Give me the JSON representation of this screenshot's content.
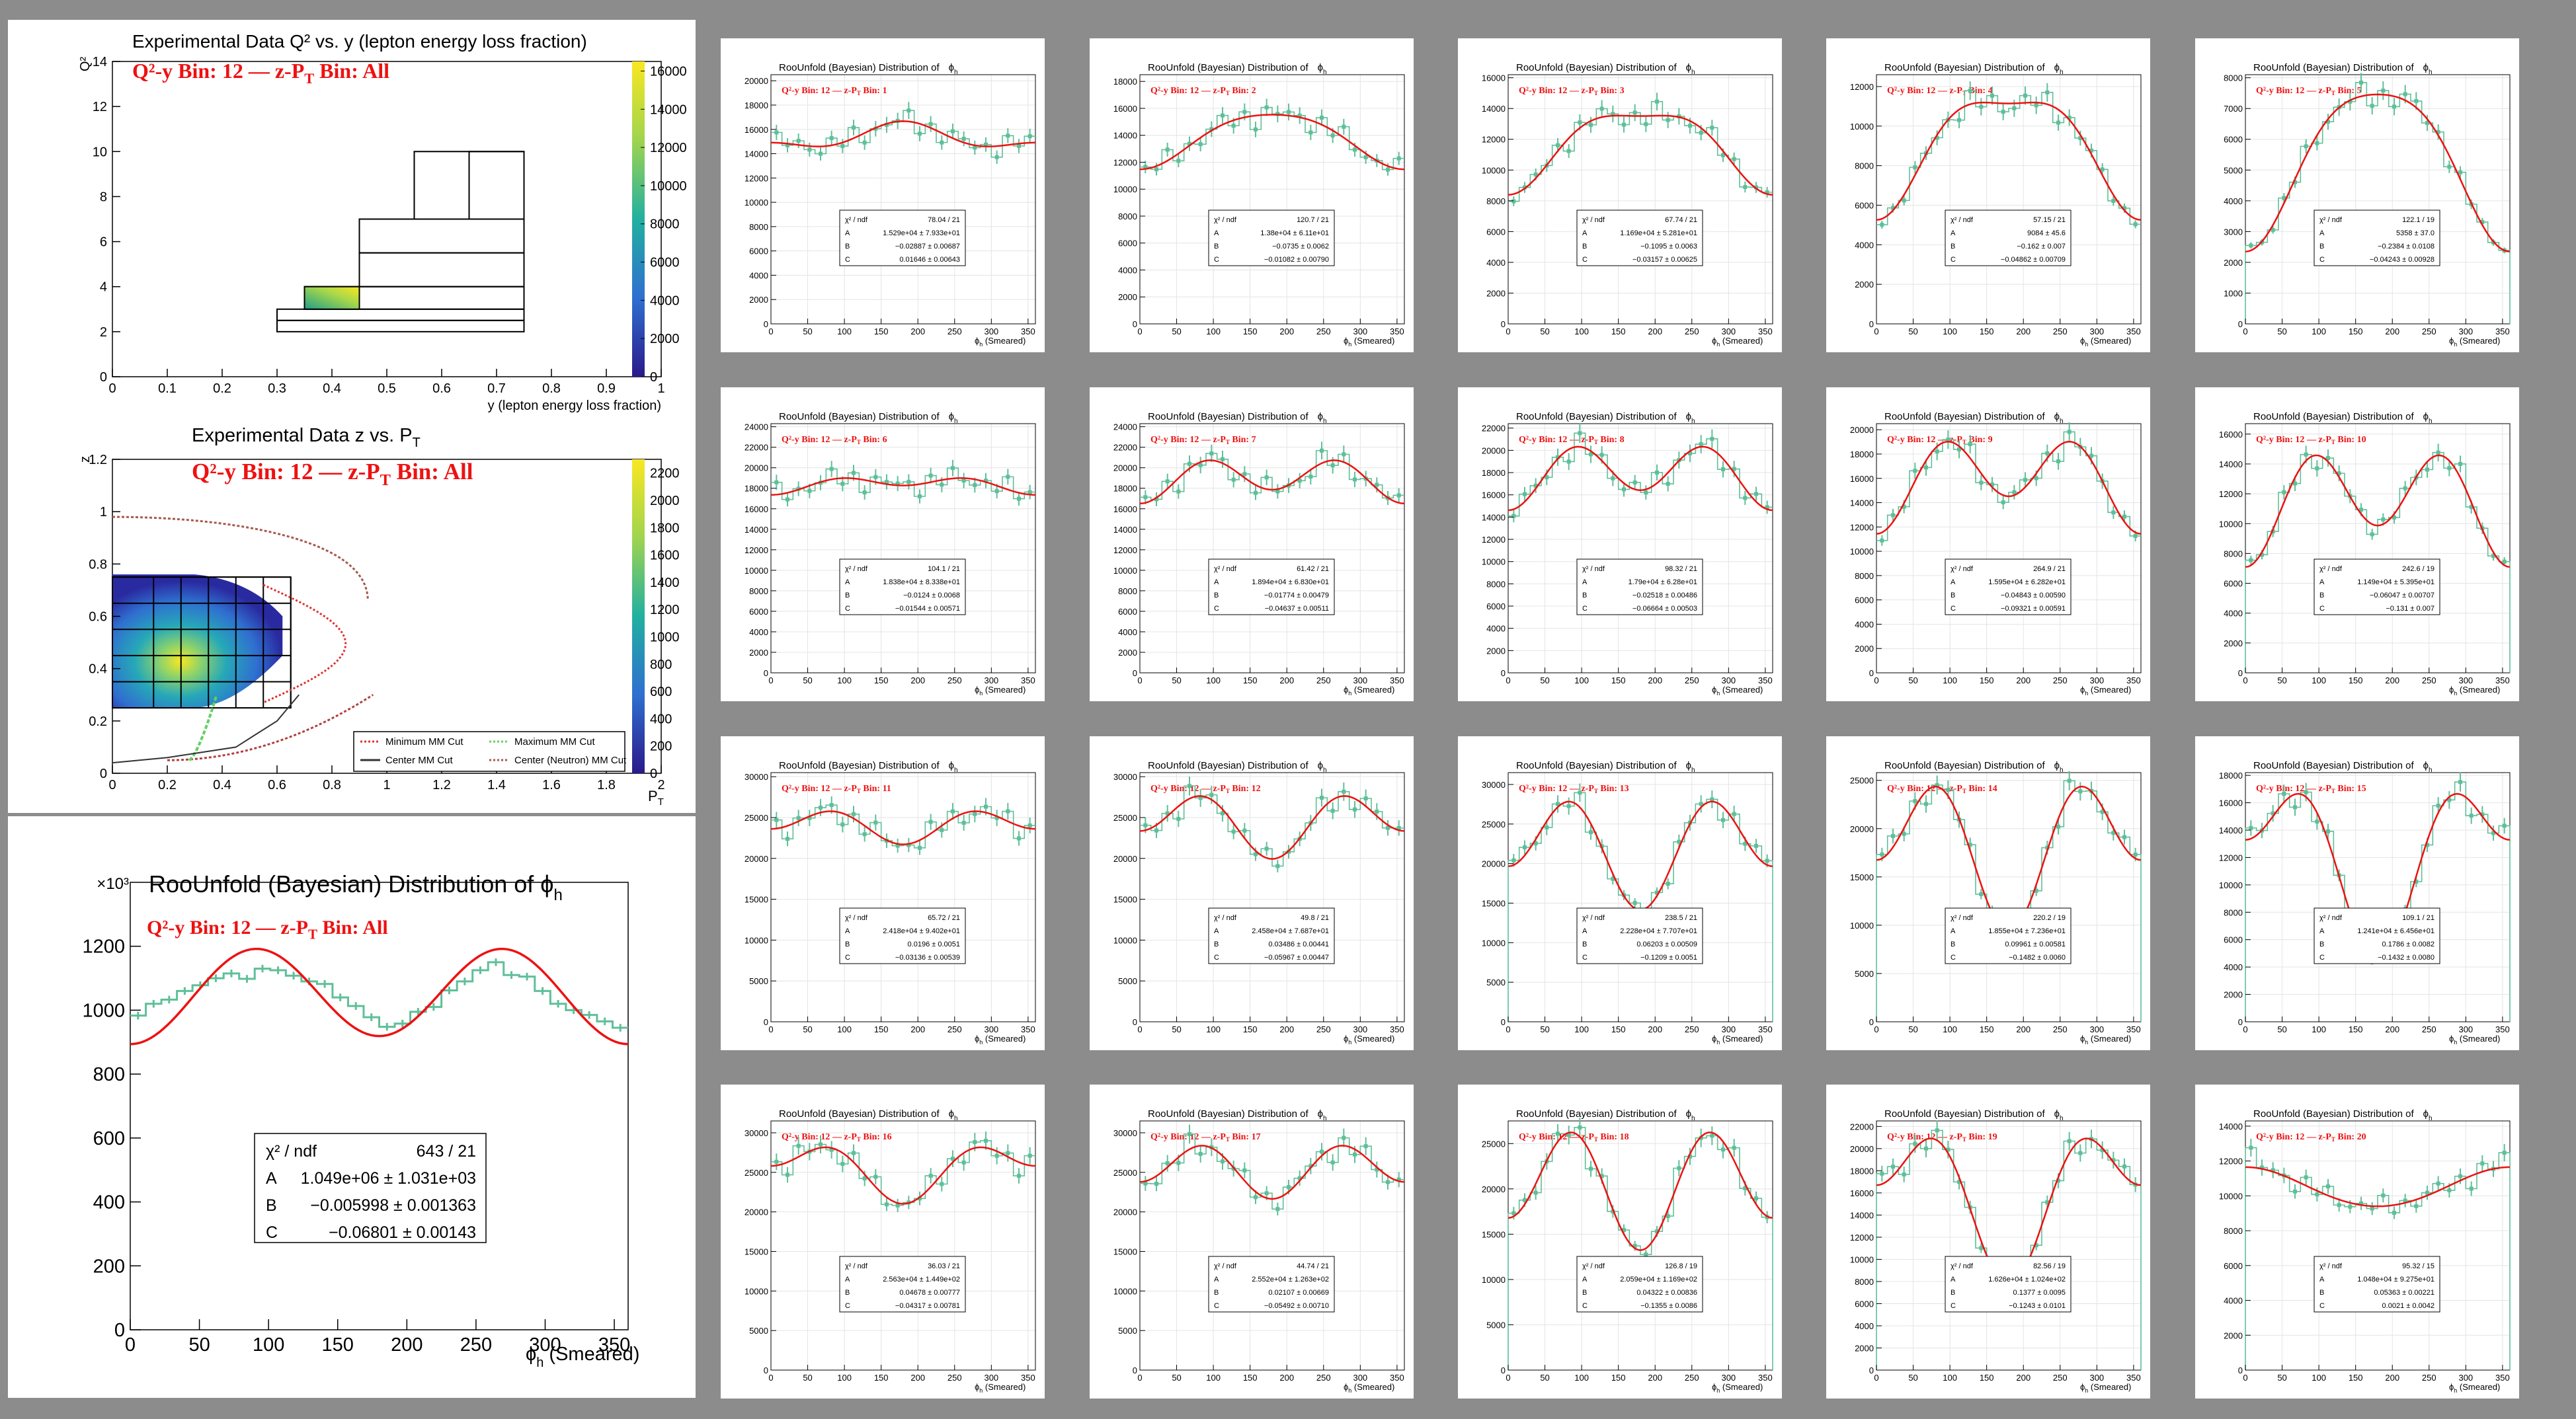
{
  "page": {
    "background": "#8c8c8c",
    "panel": "#ffffff",
    "red": "#ee1111",
    "green": "#5fbf99"
  },
  "chart_data": [
    {
      "id": "q2y",
      "type": "heatmap",
      "title": "Experimental Data Q² vs. y (lepton energy loss fraction)",
      "overlay": [
        "Q²-y Bin: 12",
        "—",
        "z-P",
        "T",
        " Bin: All"
      ],
      "xlabel": "y (lepton energy loss fraction)",
      "ylabel": "Q²",
      "xlim": [
        0,
        1
      ],
      "ylim": [
        0,
        14
      ],
      "xticks": [
        "0",
        "0.1",
        "0.2",
        "0.3",
        "0.4",
        "0.5",
        "0.6",
        "0.7",
        "0.8",
        "0.9",
        "1"
      ],
      "yticks": [
        "0",
        "2",
        "4",
        "6",
        "8",
        "10",
        "12",
        "14"
      ],
      "zticks": [
        "0",
        "2000",
        "4000",
        "6000",
        "8000",
        "10000",
        "12000",
        "14000",
        "16000"
      ],
      "zmax": 16500,
      "bin_boxes": [
        [
          0.3,
          2.0,
          0.75,
          2.5
        ],
        [
          0.3,
          2.5,
          0.75,
          3.0
        ],
        [
          0.35,
          3.0,
          0.75,
          4.0
        ],
        [
          0.45,
          4.0,
          0.75,
          5.5
        ],
        [
          0.45,
          5.5,
          0.75,
          7.0
        ],
        [
          0.55,
          7.0,
          0.75,
          10.0
        ],
        [
          0.65,
          7.0,
          0.75,
          10.0
        ]
      ],
      "filled_bin": [
        0.35,
        3.0,
        0.45,
        4.0
      ]
    },
    {
      "id": "zpt",
      "type": "heatmap",
      "title": "Experimental Data z vs. P",
      "title_sub": "T",
      "overlay": [
        "Q²-y Bin: 12",
        "—",
        "z-P",
        "T",
        " Bin: All"
      ],
      "xlabel": "P",
      "xlabel_sub": "T",
      "ylabel": "z",
      "xlim": [
        0,
        2
      ],
      "ylim": [
        0,
        1.2
      ],
      "xticks": [
        "0",
        "0.2",
        "0.4",
        "0.6",
        "0.8",
        "1",
        "1.2",
        "1.4",
        "1.6",
        "1.8",
        "2"
      ],
      "yticks": [
        "0",
        "0.2",
        "0.4",
        "0.6",
        "0.8",
        "1",
        "1.2"
      ],
      "zticks": [
        "0",
        "200",
        "400",
        "600",
        "800",
        "1000",
        "1200",
        "1400",
        "1600",
        "1800",
        "2000",
        "2200"
      ],
      "grid_x": [
        0.0,
        0.15,
        0.25,
        0.35,
        0.45,
        0.55,
        0.65
      ],
      "grid_y": [
        0.25,
        0.35,
        0.45,
        0.55,
        0.65,
        0.75
      ],
      "legend": [
        "Minimum MM Cut",
        "Maximum MM Cut",
        "Center MM Cut",
        "Center (Neutron) MM Cut"
      ]
    },
    {
      "id": "main",
      "type": "line",
      "title": "RooUnfold (Bayesian) Distribution of ϕ",
      "title_sub": "h",
      "exponent": "×10³",
      "overlay": [
        "Q²-y Bin: 12",
        "—",
        "z-P",
        "T",
        " Bin: All"
      ],
      "xlabel": "ϕ",
      "xlabel_sub": "h",
      "xlabel_tail": " (Smeared)",
      "xlim": [
        0,
        360
      ],
      "ylim": [
        0,
        1400
      ],
      "xticks": [
        "0",
        "50",
        "100",
        "150",
        "200",
        "250",
        "300",
        "350"
      ],
      "yticks": [
        "0",
        "200",
        "400",
        "600",
        "800",
        "1000",
        "1200"
      ],
      "stats": [
        [
          "χ² / ndf",
          "643 / 21"
        ],
        [
          "A",
          "1.049e+06 ± 1.031e+03"
        ],
        [
          "B",
          "−0.005998 ± 0.001363"
        ],
        [
          "C",
          "−0.06801 ± 0.00143"
        ]
      ],
      "fit": {
        "A": 1049,
        "B": -0.005998,
        "C": -0.06801
      },
      "hist": [
        983,
        1020,
        1033,
        1060,
        1078,
        1100,
        1115,
        1098,
        1130,
        1125,
        1108,
        1090,
        1082,
        1040,
        1013,
        978,
        948,
        958,
        995,
        1010,
        1062,
        1090,
        1125,
        1150,
        1110,
        1105,
        1060,
        1020,
        1000,
        985,
        965,
        945
      ]
    }
  ],
  "small_plots": {
    "title": "RooUnfold (Bayesian) Distribution of",
    "phi_symbol": "ϕ",
    "phi_sub": "h",
    "xlabel_sub": "h",
    "xlabel_tail": " (Smeared)",
    "xticks": [
      "0",
      "50",
      "100",
      "150",
      "200",
      "250",
      "300",
      "350"
    ],
    "label_prefix": "Q²-y Bin: 12",
    "label_sep": "—",
    "label_zpt": "z-P",
    "label_zpt_sub": "T",
    "label_bin": " Bin: ",
    "stat_names": [
      "χ² / ndf",
      "A",
      "B",
      "C"
    ],
    "panels": [
      {
        "bin": 1,
        "yticks": [
          0,
          2000,
          4000,
          6000,
          8000,
          10000,
          12000,
          14000,
          16000,
          18000,
          20000
        ],
        "ymax": 20500,
        "stats": [
          "78.04 / 21",
          "1.529e+04 ± 7.933e+01",
          "−0.02887 ± 0.00687",
          "0.01646 ± 0.00643"
        ],
        "fit": {
          "A": 15290,
          "B": -0.02887,
          "C": 0.01646
        },
        "zero_edges": false
      },
      {
        "bin": 2,
        "yticks": [
          0,
          2000,
          4000,
          6000,
          8000,
          10000,
          12000,
          14000,
          16000,
          18000
        ],
        "ymax": 18500,
        "stats": [
          "120.7 / 21",
          "1.38e+04 ± 6.11e+01",
          "−0.0735 ± 0.0062",
          "−0.01082 ± 0.00790"
        ],
        "fit": {
          "A": 13800,
          "B": -0.0735,
          "C": -0.01082
        },
        "zero_edges": false
      },
      {
        "bin": 3,
        "yticks": [
          0,
          2000,
          4000,
          6000,
          8000,
          10000,
          12000,
          14000,
          16000
        ],
        "ymax": 16200,
        "stats": [
          "67.74 / 21",
          "1.169e+04 ± 5.281e+01",
          "−0.1095 ± 0.0063",
          "−0.03157 ± 0.00625"
        ],
        "fit": {
          "A": 11690,
          "B": -0.1095,
          "C": -0.03157
        },
        "zero_edges": false
      },
      {
        "bin": 4,
        "yticks": [
          0,
          2000,
          4000,
          6000,
          8000,
          10000,
          12000
        ],
        "ymax": 12600,
        "stats": [
          "57.15 / 21",
          "9084 ± 45.6",
          "−0.162 ± 0.007",
          "−0.04862 ± 0.00709"
        ],
        "fit": {
          "A": 9084,
          "B": -0.162,
          "C": -0.04862
        },
        "zero_edges": false
      },
      {
        "bin": 5,
        "yticks": [
          0,
          1000,
          2000,
          3000,
          4000,
          5000,
          6000,
          7000,
          8000
        ],
        "ymax": 8100,
        "stats": [
          "122.1 / 19",
          "5358 ± 37.0",
          "−0.2384 ± 0.0108",
          "−0.04243 ± 0.00928"
        ],
        "fit": {
          "A": 5358,
          "B": -0.2384,
          "C": -0.04243
        },
        "zero_edges": true
      },
      {
        "bin": 6,
        "yticks": [
          0,
          2000,
          4000,
          6000,
          8000,
          10000,
          12000,
          14000,
          16000,
          18000,
          20000,
          22000,
          24000
        ],
        "ymax": 24300,
        "stats": [
          "104.1 / 21",
          "1.838e+04 ± 8.338e+01",
          "−0.0124 ± 0.0068",
          "−0.01544 ± 0.00571"
        ],
        "fit": {
          "A": 18380,
          "B": -0.0124,
          "C": -0.01544
        },
        "zero_edges": false
      },
      {
        "bin": 7,
        "yticks": [
          0,
          2000,
          4000,
          6000,
          8000,
          10000,
          12000,
          14000,
          16000,
          18000,
          20000,
          22000,
          24000
        ],
        "ymax": 24300,
        "stats": [
          "61.42 / 21",
          "1.894e+04 ± 6.830e+01",
          "−0.01774 ± 0.00479",
          "−0.04637 ± 0.00511"
        ],
        "fit": {
          "A": 18940,
          "B": -0.01774,
          "C": -0.04637
        },
        "zero_edges": false
      },
      {
        "bin": 8,
        "yticks": [
          0,
          2000,
          4000,
          6000,
          8000,
          10000,
          12000,
          14000,
          16000,
          18000,
          20000,
          22000
        ],
        "ymax": 22400,
        "stats": [
          "98.32 / 21",
          "1.79e+04 ± 6.28e+01",
          "−0.02518 ± 0.00486",
          "−0.06664 ± 0.00503"
        ],
        "fit": {
          "A": 17900,
          "B": -0.02518,
          "C": -0.06664
        },
        "zero_edges": false
      },
      {
        "bin": 9,
        "yticks": [
          0,
          2000,
          4000,
          6000,
          8000,
          10000,
          12000,
          14000,
          16000,
          18000,
          20000
        ],
        "ymax": 20500,
        "stats": [
          "264.9 / 21",
          "1.595e+04 ± 6.282e+01",
          "−0.04843 ± 0.00590",
          "−0.09321 ± 0.00591"
        ],
        "fit": {
          "A": 15950,
          "B": -0.04843,
          "C": -0.09321
        },
        "zero_edges": false
      },
      {
        "bin": 10,
        "yticks": [
          0,
          2000,
          4000,
          6000,
          8000,
          10000,
          12000,
          14000,
          16000
        ],
        "ymax": 16700,
        "stats": [
          "242.6 / 19",
          "1.149e+04 ± 5.395e+01",
          "−0.06047 ± 0.00707",
          "−0.131 ± 0.007"
        ],
        "fit": {
          "A": 11490,
          "B": -0.06047,
          "C": -0.131
        },
        "zero_edges": true
      },
      {
        "bin": 11,
        "yticks": [
          0,
          5000,
          10000,
          15000,
          20000,
          25000,
          30000
        ],
        "ymax": 30500,
        "stats": [
          "65.72 / 21",
          "2.418e+04 ± 9.402e+01",
          "0.0196 ± 0.0051",
          "−0.03136 ± 0.00539"
        ],
        "fit": {
          "A": 24180,
          "B": 0.0196,
          "C": -0.03136
        },
        "zero_edges": false
      },
      {
        "bin": 12,
        "yticks": [
          0,
          5000,
          10000,
          15000,
          20000,
          25000,
          30000
        ],
        "ymax": 30500,
        "stats": [
          "49.8 / 21",
          "2.458e+04 ± 7.687e+01",
          "0.03486 ± 0.00441",
          "−0.05967 ± 0.00447"
        ],
        "fit": {
          "A": 24580,
          "B": 0.03486,
          "C": -0.05967
        },
        "zero_edges": false
      },
      {
        "bin": 13,
        "yticks": [
          0,
          5000,
          10000,
          15000,
          20000,
          25000,
          30000
        ],
        "ymax": 31500,
        "stats": [
          "238.5 / 21",
          "2.228e+04 ± 7.707e+01",
          "0.06203 ± 0.00509",
          "−0.1209 ± 0.0051"
        ],
        "fit": {
          "A": 22280,
          "B": 0.06203,
          "C": -0.1209
        },
        "zero_edges": true
      },
      {
        "bin": 14,
        "yticks": [
          0,
          5000,
          10000,
          15000,
          20000,
          25000
        ],
        "ymax": 25800,
        "stats": [
          "220.2 / 19",
          "1.855e+04 ± 7.236e+01",
          "0.09961 ± 0.00581",
          "−0.1482 ± 0.0060"
        ],
        "fit": {
          "A": 18550,
          "B": 0.09961,
          "C": -0.1482
        },
        "zero_edges": true
      },
      {
        "bin": 15,
        "yticks": [
          0,
          2000,
          4000,
          6000,
          8000,
          10000,
          12000,
          14000,
          16000,
          18000
        ],
        "ymax": 18200,
        "stats": [
          "109.1 / 21",
          "1.241e+04 ± 6.456e+01",
          "0.1786 ± 0.0082",
          "−0.1432 ± 0.0080"
        ],
        "fit": {
          "A": 12410,
          "B": 0.1786,
          "C": -0.1432
        },
        "zero_edges": true
      },
      {
        "bin": 16,
        "yticks": [
          0,
          5000,
          10000,
          15000,
          20000,
          25000,
          30000
        ],
        "ymax": 31500,
        "stats": [
          "36.03 / 21",
          "2.563e+04 ± 1.449e+02",
          "0.04678 ± 0.00777",
          "−0.04317 ± 0.00781"
        ],
        "fit": {
          "A": 25630,
          "B": 0.04678,
          "C": -0.04317
        },
        "zero_edges": false
      },
      {
        "bin": 17,
        "yticks": [
          0,
          5000,
          10000,
          15000,
          20000,
          25000,
          30000
        ],
        "ymax": 31500,
        "stats": [
          "44.74 / 21",
          "2.552e+04 ± 1.263e+02",
          "0.02107 ± 0.00669",
          "−0.05492 ± 0.00710"
        ],
        "fit": {
          "A": 25520,
          "B": 0.02107,
          "C": -0.05492
        },
        "zero_edges": false
      },
      {
        "bin": 18,
        "yticks": [
          0,
          5000,
          10000,
          15000,
          20000,
          25000
        ],
        "ymax": 27500,
        "stats": [
          "126.8 / 19",
          "2.059e+04 ± 1.169e+02",
          "0.04322 ± 0.00836",
          "−0.1355 ± 0.0086"
        ],
        "fit": {
          "A": 20590,
          "B": 0.04322,
          "C": -0.1355
        },
        "zero_edges": true
      },
      {
        "bin": 19,
        "yticks": [
          0,
          2000,
          4000,
          6000,
          8000,
          10000,
          12000,
          14000,
          16000,
          18000,
          20000,
          22000
        ],
        "ymax": 22500,
        "stats": [
          "82.56 / 19",
          "1.626e+04 ± 1.024e+02",
          "0.1377 ± 0.0095",
          "−0.1243 ± 0.0101"
        ],
        "fit": {
          "A": 16260,
          "B": 0.1377,
          "C": -0.1243
        },
        "zero_edges": true
      },
      {
        "bin": 20,
        "yticks": [
          0,
          2000,
          4000,
          6000,
          8000,
          10000,
          12000,
          14000
        ],
        "ymax": 14300,
        "stats": [
          "95.32 / 15",
          "1.048e+04 ± 9.275e+01",
          "0.05363 ± 0.00221",
          "0.0021 ± 0.0042"
        ],
        "fit": {
          "A": 10480,
          "B": 0.05363,
          "C": 0.0021
        },
        "zero_edges": true,
        "dips": [
          true
        ]
      }
    ]
  }
}
